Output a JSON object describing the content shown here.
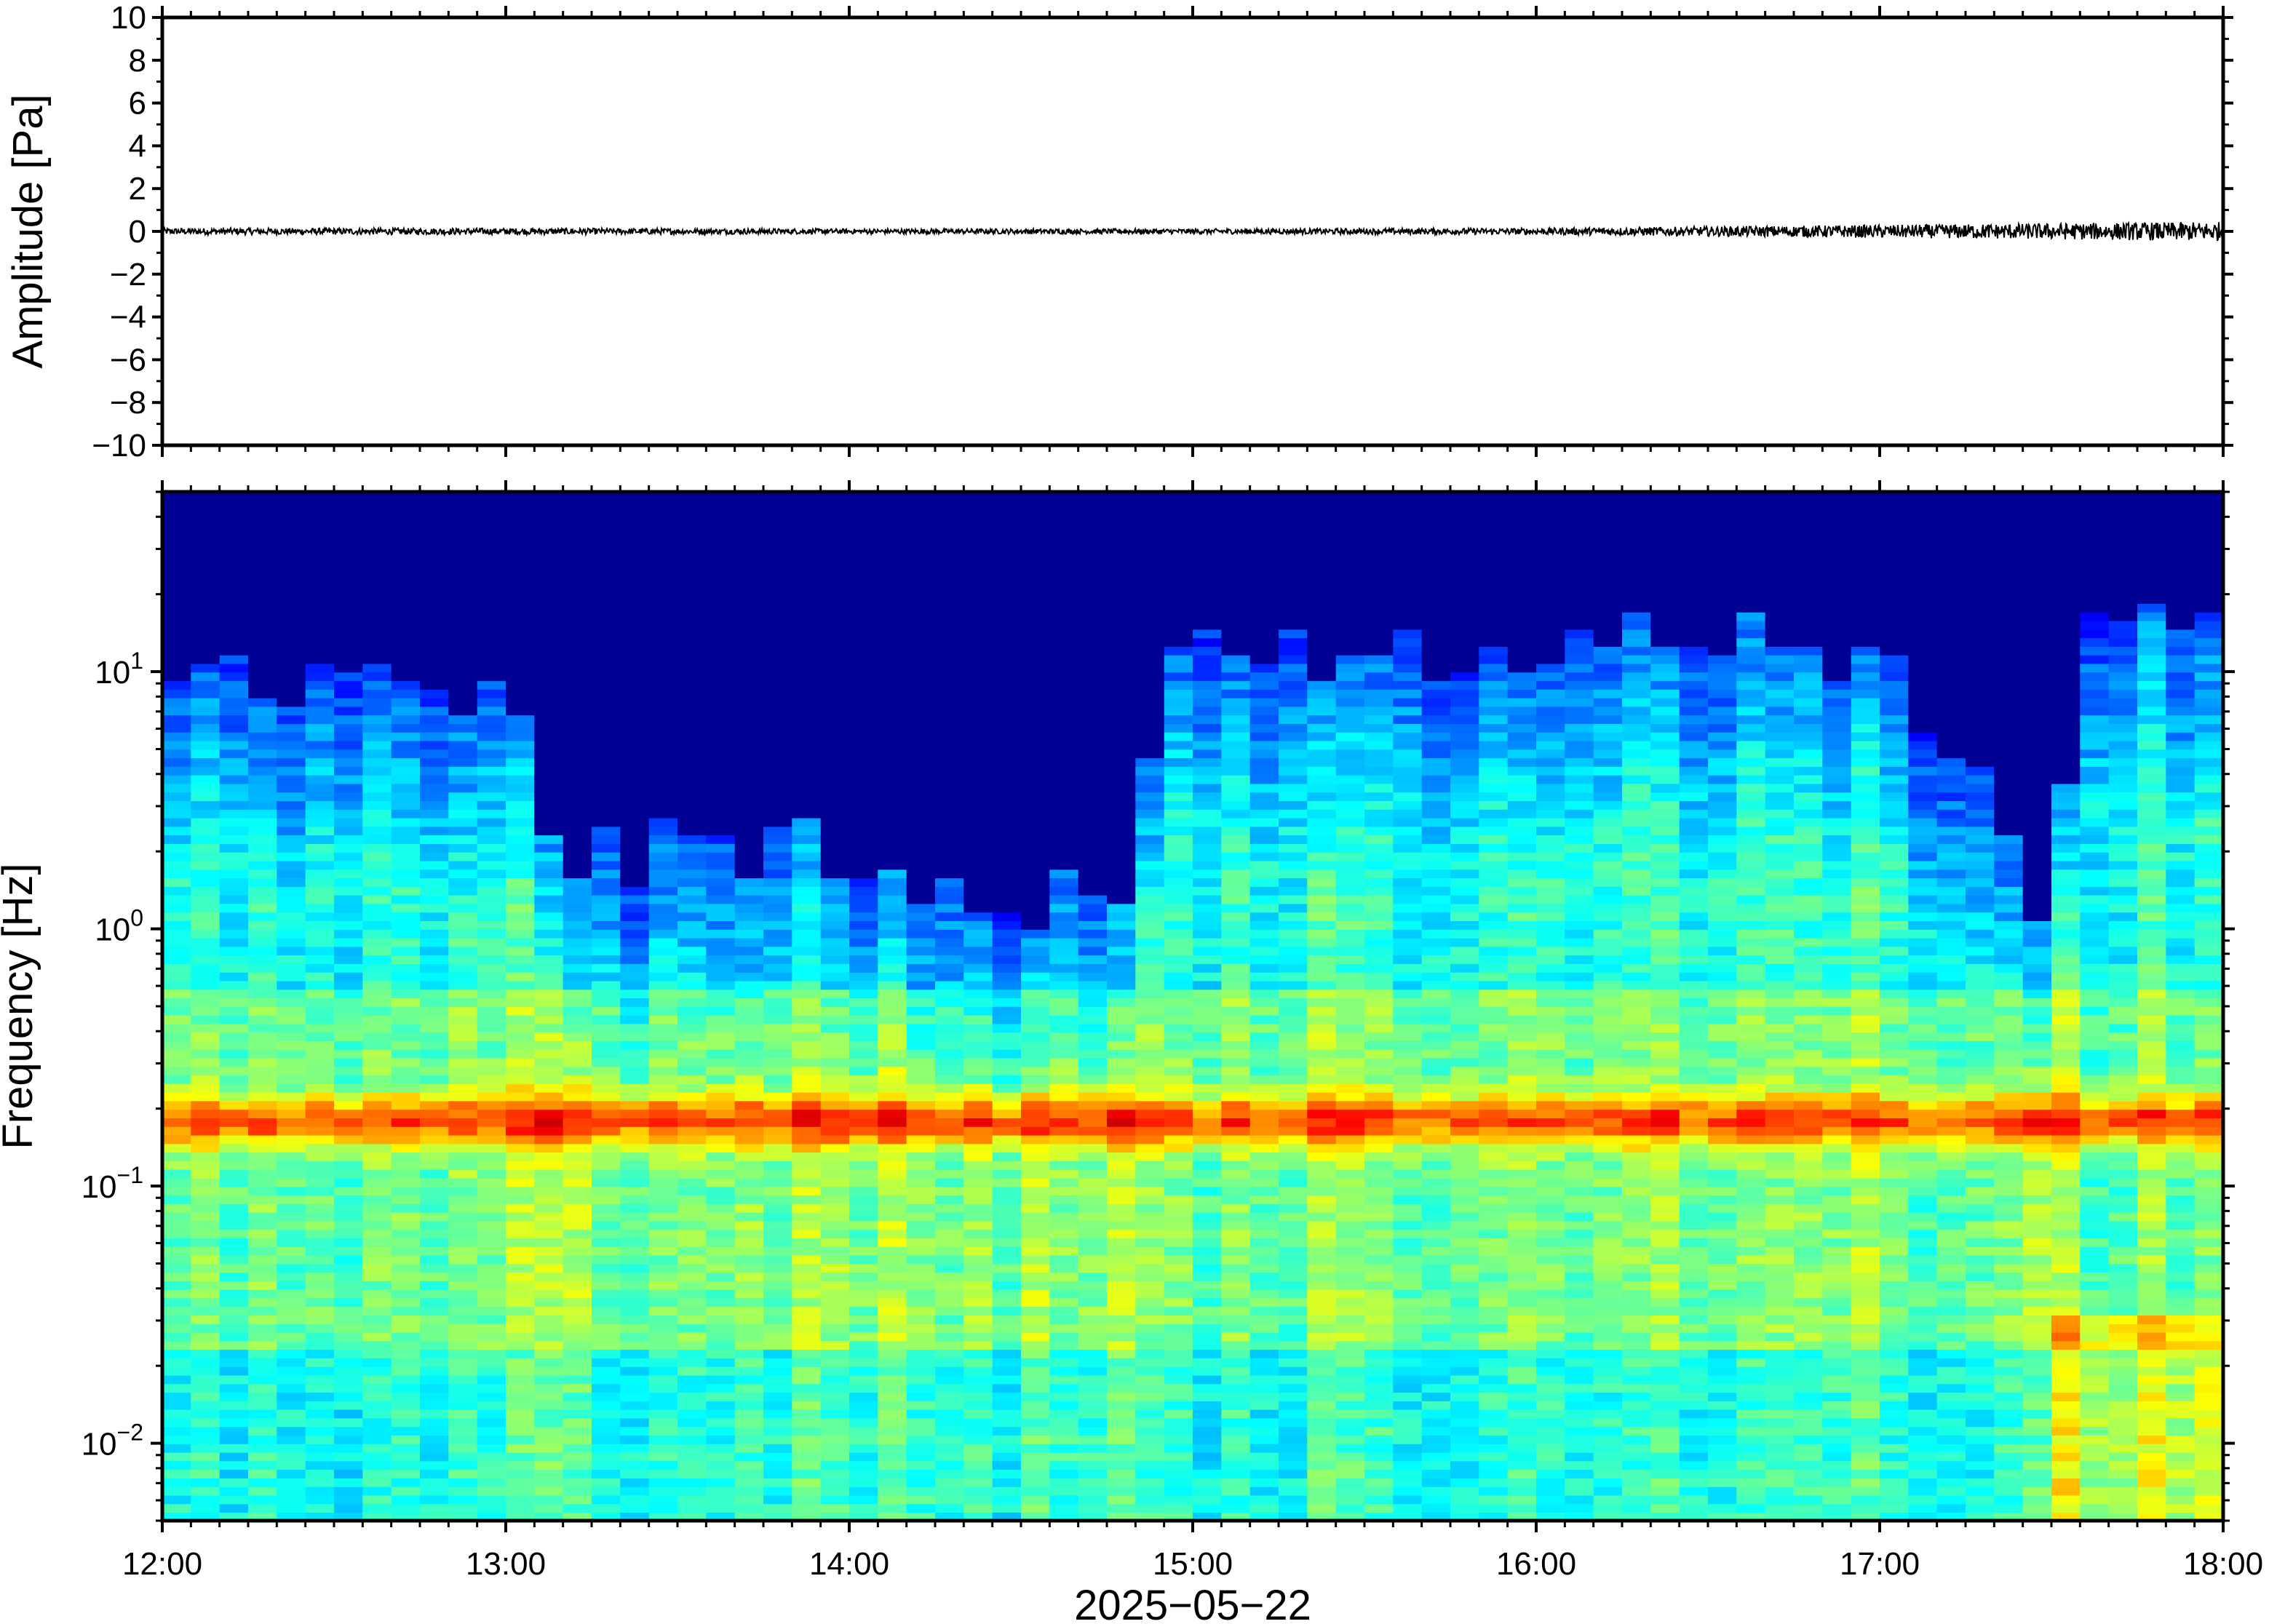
{
  "chart_data": [
    {
      "type": "line",
      "panel": "waveform",
      "title": "",
      "ylabel": "Amplitude [Pa]",
      "xlabel": "",
      "ylim": [
        -10,
        10
      ],
      "yticks": [
        -10,
        -8,
        -6,
        -4,
        -2,
        0,
        2,
        4,
        6,
        8,
        10
      ],
      "ytick_labels": [
        "−10",
        "−8",
        "−6",
        "−4",
        "−2",
        "0",
        "2",
        "4",
        "6",
        "8",
        "10"
      ],
      "x": [
        "12:00",
        "13:00",
        "14:00",
        "15:00",
        "16:00",
        "17:00",
        "18:00"
      ],
      "series": [
        {
          "values": [
            0,
            0,
            0,
            0,
            0,
            0,
            0
          ],
          "noise_amplitude": [
            0.15,
            0.15,
            0.12,
            0.12,
            0.15,
            0.3,
            0.45
          ]
        }
      ],
      "color": "#000000"
    },
    {
      "type": "heatmap",
      "panel": "spectrogram",
      "title": "",
      "ylabel": "Frequency [Hz]",
      "xlabel": "2025−05−22",
      "y_scale": "log",
      "ylim": [
        0.005,
        50
      ],
      "yticks": [
        0.01,
        0.1,
        1,
        10
      ],
      "ytick_labels": [
        {
          "base": "10",
          "exp": "−2"
        },
        {
          "base": "10",
          "exp": "−1"
        },
        {
          "base": "10",
          "exp": "0"
        },
        {
          "base": "10",
          "exp": "1"
        }
      ],
      "xlim": [
        "12:00",
        "18:00"
      ],
      "xticks": [
        "12:00",
        "13:00",
        "14:00",
        "15:00",
        "16:00",
        "17:00",
        "18:00"
      ],
      "colormap": "jet",
      "dominant_band_hz": 0.18,
      "upper_activity_hz": [
        {
          "time": "12:00",
          "hz": 10
        },
        {
          "time": "13:00",
          "hz": 8
        },
        {
          "time": "13:10",
          "hz": 2
        },
        {
          "time": "14:00",
          "hz": 2
        },
        {
          "time": "14:30",
          "hz": 1.2
        },
        {
          "time": "14:50",
          "hz": 1.5
        },
        {
          "time": "14:55",
          "hz": 11
        },
        {
          "time": "16:00",
          "hz": 12
        },
        {
          "time": "16:30",
          "hz": 14
        },
        {
          "time": "17:00",
          "hz": 10
        },
        {
          "time": "17:20",
          "hz": 4
        },
        {
          "time": "17:30",
          "hz": 1.0
        },
        {
          "time": "17:35",
          "hz": 14
        },
        {
          "time": "18:00",
          "hz": 16
        }
      ]
    }
  ]
}
